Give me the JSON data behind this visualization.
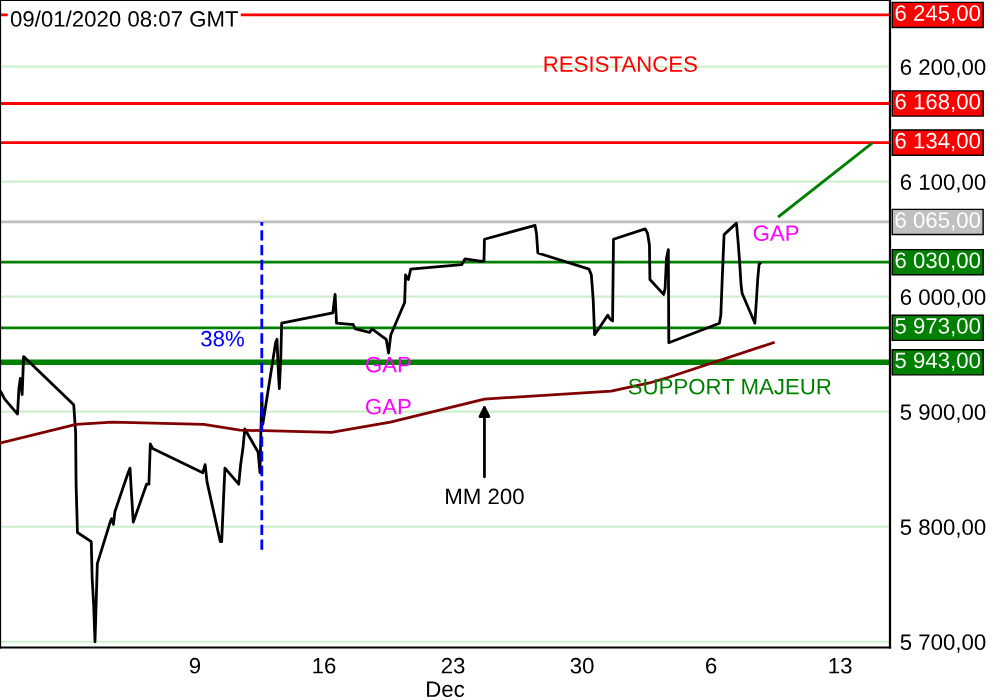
{
  "chart_data": {
    "type": "line",
    "annotations": [
      "09/01/2020 08:07 GMT",
      "RESISTANCES",
      "SUPPORT MAJEUR",
      {
        "text": "MM 200",
        "x": "2019-12-24T16:54",
        "y": 5911
      },
      "GAP",
      "GAP",
      "GAP",
      "38%"
    ],
    "xlabel": "Dec",
    "series": [
      {
        "color": "#000000",
        "x": [
          "2019-11-28T11:28",
          "2019-11-28T16:19",
          "2019-11-29T09:00",
          "2019-11-29T10:47",
          "2019-11-29T12:39",
          "2019-11-29T15:02",
          "2019-11-29T16:54",
          "2019-12-02T10:11",
          "2019-12-02T12:39",
          "2019-12-02T13:15",
          "2019-12-02T15:02",
          "2019-12-03T09:00",
          "2019-12-03T10:11",
          "2019-12-03T12:04",
          "2019-12-03T13:51",
          "2019-12-03T15:02",
          "2019-12-03T16:54",
          "2019-12-04T09:36",
          "2019-12-04T11:28",
          "2019-12-04T13:51",
          "2019-12-04T15:43",
          "2019-12-05T09:00",
          "2019-12-05T11:28",
          "2019-12-05T13:15",
          "2019-12-05T15:43",
          "2019-12-06T09:00",
          "2019-12-06T12:04",
          "2019-12-06T13:51",
          "2019-12-06T16:54",
          "2019-12-09T10:11",
          "2019-12-09T13:15",
          "2019-12-09T15:43",
          "2019-12-10T09:00",
          "2019-12-10T10:47",
          "2019-12-10T13:15",
          "2019-12-10T15:02",
          "2019-12-11T09:00",
          "2019-12-11T11:28",
          "2019-12-11T14:26",
          "2019-12-11T16:54",
          "2019-12-12T10:11",
          "2019-12-12T12:39",
          "2019-12-12T14:26",
          "2019-12-12T15:02",
          "2019-12-12T16:19",
          "2019-12-13T09:00",
          "2019-12-13T10:47",
          "2019-12-13T12:39",
          "2019-12-13T13:51",
          "2019-12-13T15:43",
          "2019-12-13T16:54",
          "2019-12-16T11:28",
          "2019-12-16T14:26",
          "2019-12-16T16:19",
          "2019-12-17T10:47",
          "2019-12-17T13:51",
          "2019-12-17T16:54",
          "2019-12-18T11:28",
          "2019-12-18T14:26",
          "2019-12-19T09:00",
          "2019-12-19T12:04",
          "2019-12-19T15:02",
          "2019-12-20T09:00",
          "2019-12-20T10:11",
          "2019-12-20T13:51",
          "2019-12-20T16:54",
          "2019-12-23T11:28",
          "2019-12-23T15:43",
          "2019-12-24T10:47",
          "2019-12-24T16:19",
          "2019-12-24T16:54",
          "2019-12-27T10:47",
          "2019-12-27T12:39",
          "2019-12-27T14:26",
          "2019-12-30T09:00",
          "2019-12-30T12:04",
          "2019-12-30T14:26",
          "2019-12-30T16:19",
          "2019-12-31T09:36",
          "2019-12-31T12:04",
          "2019-12-31T15:43",
          "2019-12-31T16:54",
          "2020-01-02T10:11",
          "2020-01-02T13:15",
          "2020-01-02T15:43",
          "2020-01-02T16:19",
          "2020-01-03T10:11",
          "2020-01-03T12:04",
          "2020-01-03T13:51",
          "2020-01-03T16:19",
          "2020-01-03T16:54",
          "2020-01-06T10:47",
          "2020-01-06T12:39",
          "2020-01-06T14:26",
          "2020-01-06T16:54",
          "2020-01-07T09:00",
          "2020-01-07T11:28",
          "2020-01-07T13:15",
          "2020-01-07T15:02",
          "2020-01-07T16:19",
          "2020-01-08T09:00",
          "2020-01-08T10:47",
          "2020-01-08T12:39",
          "2020-01-08T14:26",
          "2020-01-08T15:43"
        ],
        "values": [
          5917,
          5911,
          5898,
          5920,
          5929,
          5915,
          5948,
          5906,
          5882,
          5837,
          5795,
          5787,
          5755,
          5733,
          5700,
          5726,
          5768,
          5804,
          5807,
          5802,
          5813,
          5847,
          5851,
          5830,
          5804,
          5837,
          5837,
          5872,
          5868,
          5847,
          5854,
          5839,
          5787,
          5787,
          5825,
          5851,
          5837,
          5854,
          5868,
          5885,
          5865,
          5847,
          5899,
          5915,
          5889,
          5960,
          5963,
          5934,
          5920,
          5946,
          5977,
          5986,
          6002,
          5977,
          5976,
          5976,
          5972,
          5969,
          5972,
          5963,
          5951,
          5967,
          5995,
          6019,
          6015,
          6024,
          6028,
          6033,
          6031,
          6031,
          6050,
          6062,
          6055,
          6038,
          6024,
          6019,
          5998,
          5967,
          5984,
          5981,
          5979,
          6050,
          6059,
          6055,
          6045,
          6015,
          6002,
          6007,
          6033,
          6041,
          5960,
          5977,
          5984,
          6015,
          6054,
          6064,
          6045,
          6029,
          6010,
          6003,
          5977,
          5995,
          6015,
          6028,
          6029
        ]
      },
      {
        "color": "#800000",
        "x": [
          "2019-11-28T11:28",
          "2019-12-02T13:15",
          "2019-12-04T12:39",
          "2019-12-09T11:28",
          "2019-12-11T10:47",
          "2019-12-16T09:36",
          "2019-12-19T14:26",
          "2019-12-24T16:54",
          "2019-12-31T13:51",
          "2020-01-02T15:43",
          "2020-01-03T16:54",
          "2020-01-09T09:00"
        ],
        "values": [
          5873,
          5889,
          5891,
          5889,
          5884,
          5882,
          5891,
          5911,
          5918,
          5925,
          5930,
          5960
        ]
      },
      {
        "color": "#0000ff",
        "line_style": "dashed",
        "x": [
          "2019-12-12T15:02",
          "2019-12-12T15:02"
        ],
        "values": [
          5780,
          6065
        ]
      },
      {
        "color": "#008000",
        "x": [
          "2020-01-09T16:39",
          "2020-01-14T16:39"
        ],
        "values": [
          6070,
          6133
        ]
      }
    ],
    "ref_lines": [
      {
        "axis": "y",
        "value": 6245,
        "label": "6 245,00",
        "color": "#ff0000"
      },
      {
        "axis": "y",
        "value": 6168,
        "label": "6 168,00",
        "color": "#ff0000"
      },
      {
        "axis": "y",
        "value": 6134,
        "label": "6 134,00",
        "color": "#ff0000"
      },
      {
        "axis": "y",
        "value": 6065,
        "label": "6 065,00",
        "color": "#c0c0c0"
      },
      {
        "axis": "y",
        "value": 6030,
        "label": "6 030,00",
        "color": "#008000"
      },
      {
        "axis": "y",
        "value": 5973,
        "label": "5 973,00",
        "color": "#008000"
      },
      {
        "axis": "y",
        "value": 5943,
        "label": "5 943,00",
        "color": "#008000"
      }
    ],
    "xlim": [
      "2019-11-28T10:11",
      "2020-01-15T16:54"
    ],
    "xticks": [
      {
        "value": "2019-12-09",
        "label": "9"
      },
      {
        "value": "2019-12-16",
        "label": "16"
      },
      {
        "value": "2019-12-23",
        "label": "23"
      },
      {
        "value": "2019-12-30",
        "label": "30"
      },
      {
        "value": "2020-01-06",
        "label": "6"
      },
      {
        "value": "2020-01-13",
        "label": "13"
      }
    ],
    "ylim": [
      5695,
      6258
    ],
    "yticks": [
      {
        "value": 5700,
        "label": "5 700,00"
      },
      {
        "value": 5800,
        "label": "5 800,00"
      },
      {
        "value": 5900,
        "label": "5 900,00"
      },
      {
        "value": 6000,
        "label": "6 000,00"
      },
      {
        "value": 6100,
        "label": "6 100,00"
      },
      {
        "value": 6200,
        "label": "6 200,00"
      }
    ],
    "grid": "y",
    "line_style": "solid"
  }
}
